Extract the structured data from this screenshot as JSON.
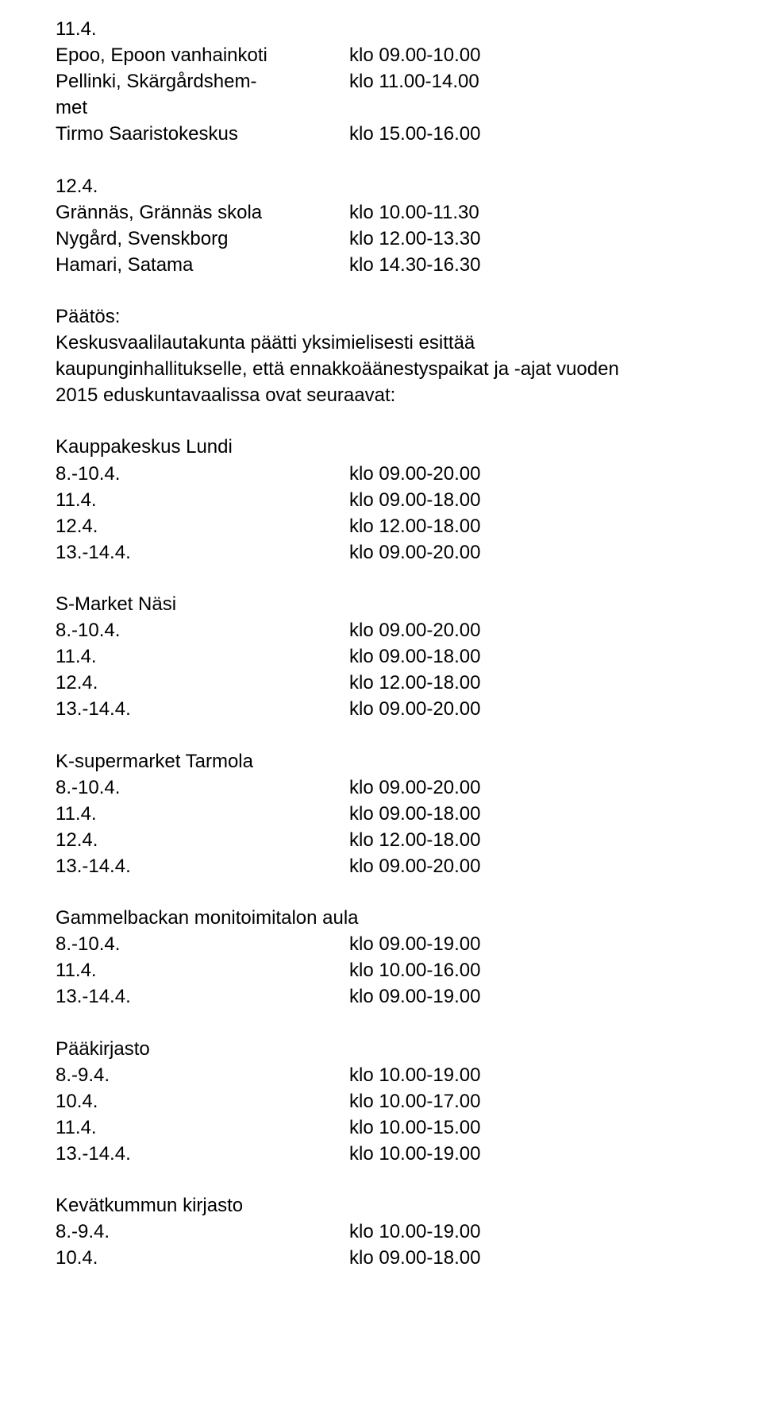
{
  "top": {
    "line1": "11.4.",
    "r1a": "Epoo, Epoon vanhainkoti",
    "r1b": "klo 09.00-10.00",
    "r2a": "Pellinki, Skärgårdshem-",
    "r2b": "klo 11.00-14.00",
    "r3a": "met",
    "r4a": "Tirmo Saaristokeskus",
    "r4b": "klo 15.00-16.00",
    "line5": "12.4.",
    "r6a": "Grännäs, Grännäs skola",
    "r6b": "klo 10.00-11.30",
    "r7a": "Nygård, Svenskborg",
    "r7b": "klo 12.00-13.30",
    "r8a": "Hamari, Satama",
    "r8b": "klo 14.30-16.30"
  },
  "decision": {
    "title": "Päätös:",
    "body1": "Keskusvaalilautakunta päätti yksimielisesti esittää",
    "body2": "kaupunginhallitukselle, että ennakkoäänestyspaikat ja -ajat vuoden",
    "body3": "2015 eduskuntavaalissa ovat seuraavat:"
  },
  "groups": [
    {
      "title": "Kauppakeskus Lundi",
      "rows": [
        {
          "a": "8.-10.4.",
          "b": "klo 09.00-20.00"
        },
        {
          "a": "11.4.",
          "b": "klo 09.00-18.00"
        },
        {
          "a": "12.4.",
          "b": "klo 12.00-18.00"
        },
        {
          "a": "13.-14.4.",
          "b": "klo 09.00-20.00"
        }
      ]
    },
    {
      "title": "S-Market Näsi",
      "rows": [
        {
          "a": "8.-10.4.",
          "b": "klo 09.00-20.00"
        },
        {
          "a": "11.4.",
          "b": "klo 09.00-18.00"
        },
        {
          "a": "12.4.",
          "b": "klo 12.00-18.00"
        },
        {
          "a": "13.-14.4.",
          "b": "klo 09.00-20.00"
        }
      ]
    },
    {
      "title": "K-supermarket Tarmola",
      "rows": [
        {
          "a": "8.-10.4.",
          "b": "klo 09.00-20.00"
        },
        {
          "a": "11.4.",
          "b": "klo 09.00-18.00"
        },
        {
          "a": "12.4.",
          "b": "klo 12.00-18.00"
        },
        {
          "a": "13.-14.4.",
          "b": "klo 09.00-20.00"
        }
      ]
    },
    {
      "title": "Gammelbackan monitoimitalon aula",
      "rows": [
        {
          "a": "8.-10.4.",
          "b": "klo 09.00-19.00"
        },
        {
          "a": "11.4.",
          "b": "klo 10.00-16.00"
        },
        {
          "a": "13.-14.4.",
          "b": "klo 09.00-19.00"
        }
      ]
    },
    {
      "title": "Pääkirjasto",
      "rows": [
        {
          "a": "8.-9.4.",
          "b": "klo 10.00-19.00"
        },
        {
          "a": "10.4.",
          "b": "klo 10.00-17.00"
        },
        {
          "a": "11.4.",
          "b": "klo 10.00-15.00"
        },
        {
          "a": "13.-14.4.",
          "b": "klo 10.00-19.00"
        }
      ]
    },
    {
      "title": "Kevätkummun kirjasto",
      "rows": [
        {
          "a": "8.-9.4.",
          "b": "klo 10.00-19.00"
        },
        {
          "a": "10.4.",
          "b": "klo 09.00-18.00"
        }
      ]
    }
  ]
}
